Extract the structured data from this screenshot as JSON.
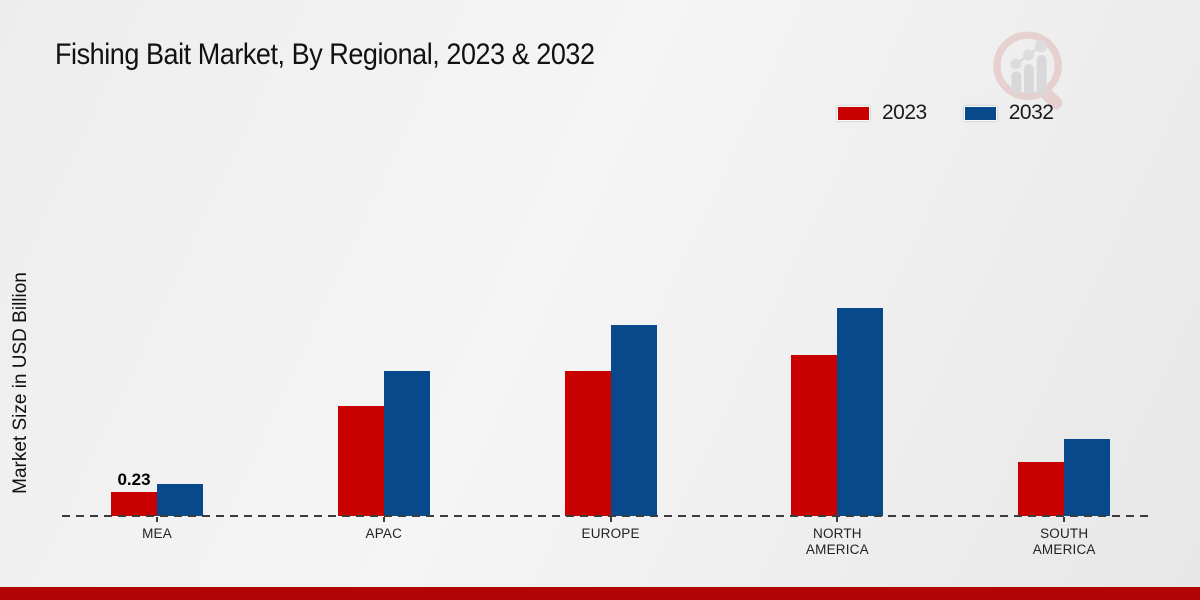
{
  "header": {
    "title": "Fishing Bait Market, By Regional, 2023 & 2032"
  },
  "chart_data": {
    "type": "bar",
    "title": "Fishing Bait Market, By Regional, 2023 & 2032",
    "xlabel": "",
    "ylabel": "Market Size in USD Billion",
    "categories": [
      "MEA",
      "APAC",
      "EUROPE",
      "NORTH AMERICA",
      "SOUTH AMERICA"
    ],
    "series": [
      {
        "name": "2023",
        "color": "#c80000",
        "values": [
          0.23,
          1.05,
          1.39,
          1.54,
          0.52
        ],
        "data_labels": [
          "0.23",
          "",
          "",
          "",
          ""
        ]
      },
      {
        "name": "2032",
        "color": "#07498b",
        "values": [
          0.31,
          1.39,
          1.83,
          1.99,
          0.74
        ],
        "data_labels": [
          "",
          "",
          "",
          "",
          ""
        ]
      }
    ],
    "ylim": [
      0,
      2.2
    ],
    "grid": false,
    "legend_position": "top-right",
    "baseline_style": "dashed"
  },
  "colors": {
    "series_2023": "#c80000",
    "series_2032": "#07498b",
    "footer_stripe": "#b30505",
    "axis": "#3c3c3c"
  },
  "watermark": {
    "name": "magnifier-bar-chart-logo"
  }
}
